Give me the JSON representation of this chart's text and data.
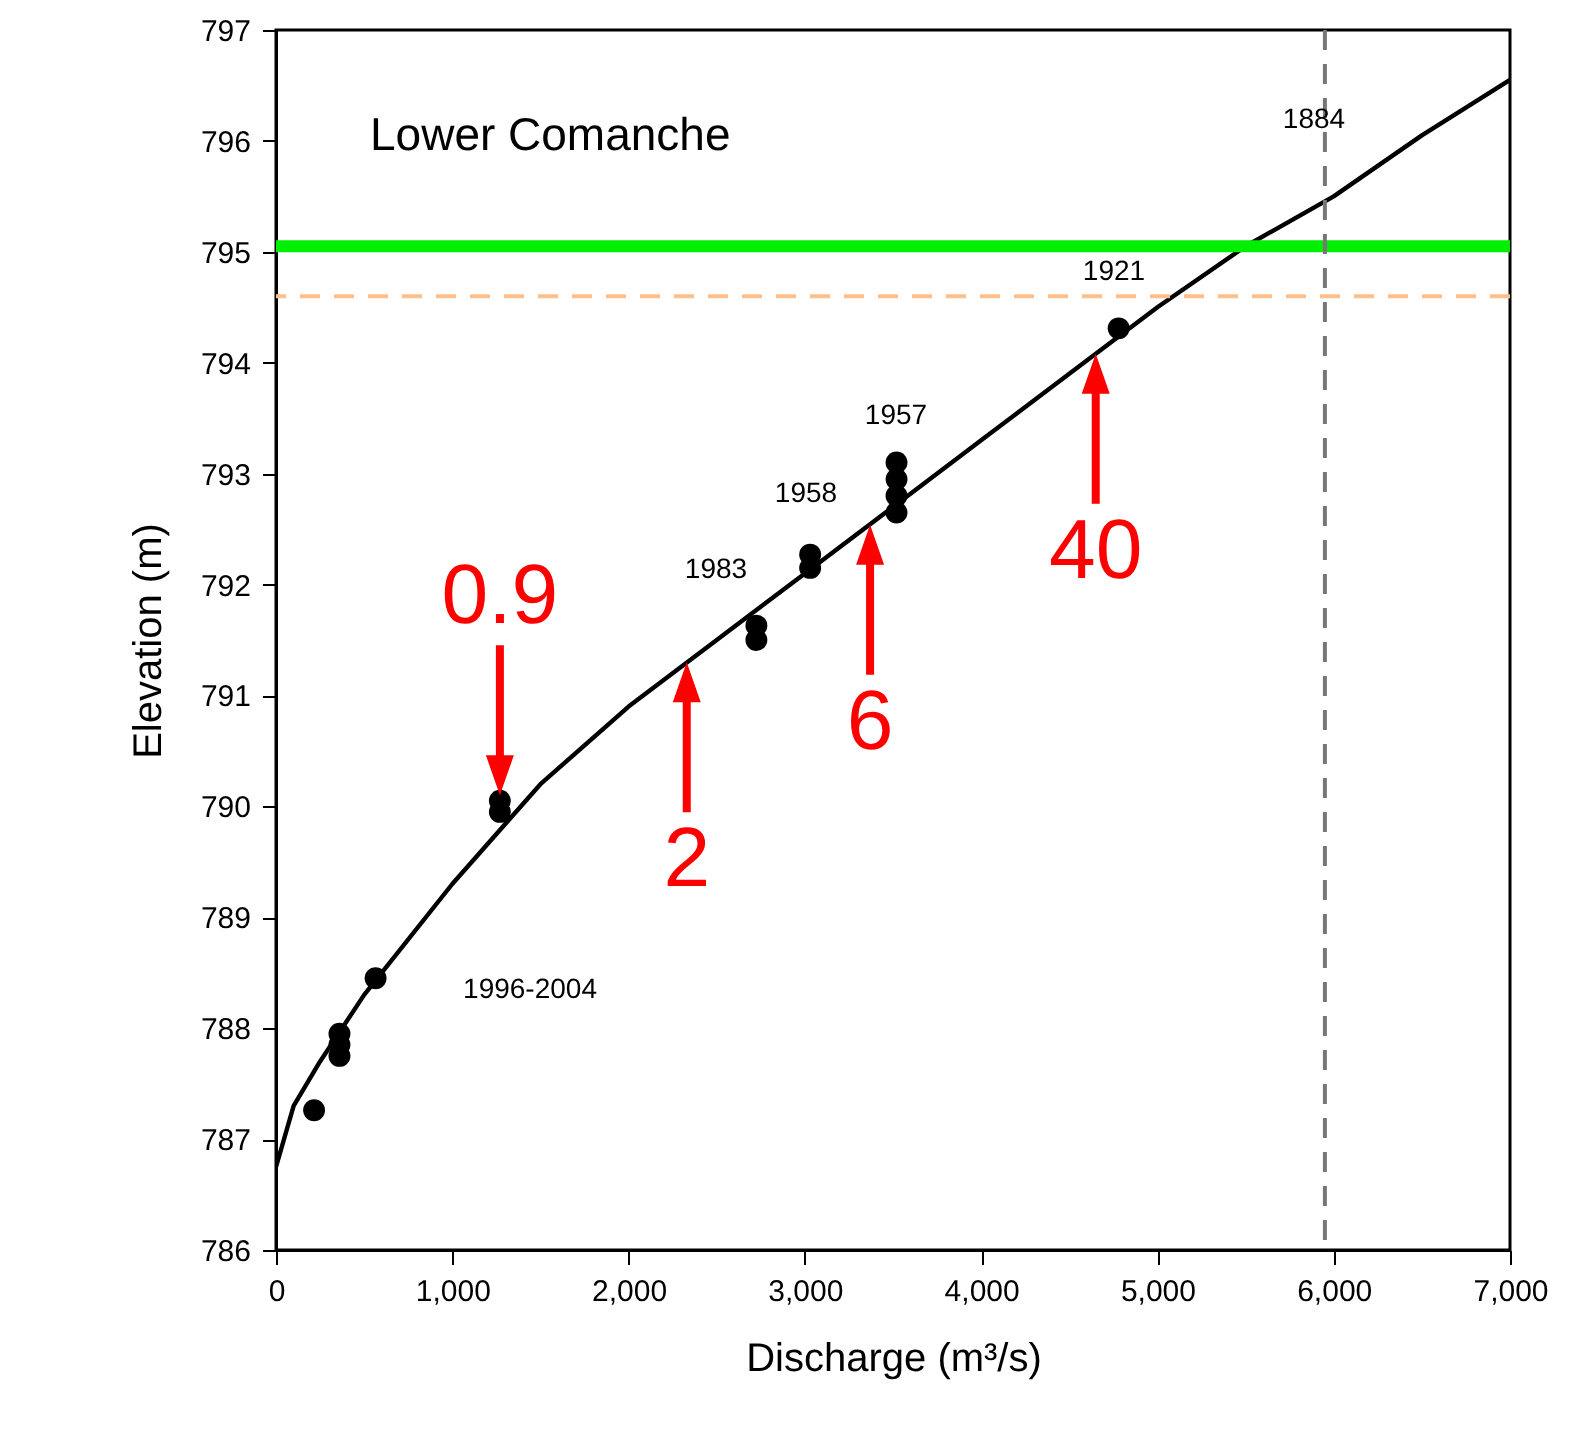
{
  "chart_data": {
    "type": "scatter",
    "xlabel": "Discharge (m³/s)",
    "ylabel": "Elevation (m)",
    "xlim": [
      0,
      7000
    ],
    "xticks": [
      0,
      {
        "value": 1000,
        "label": "1,000"
      },
      {
        "value": 2000,
        "label": "2,000"
      },
      {
        "value": 3000,
        "label": "3,000"
      },
      {
        "value": 4000,
        "label": "4,000"
      },
      {
        "value": 5000,
        "label": "5,000"
      },
      {
        "value": 6000,
        "label": "6,000"
      },
      {
        "value": 7000,
        "label": "7,000"
      }
    ],
    "ylim": [
      786,
      797
    ],
    "yticks": [
      786,
      787,
      788,
      789,
      790,
      791,
      792,
      793,
      794,
      795,
      796,
      797
    ],
    "grid": false,
    "series": [
      {
        "type": "line",
        "color": "#000000",
        "x": [
          0,
          100,
          250,
          500,
          1000,
          1500,
          2000,
          2500,
          3000,
          3500,
          4000,
          4500,
          5000,
          5500,
          6000,
          6500,
          7000
        ],
        "values": [
          786.75,
          787.3,
          787.7,
          788.3,
          789.3,
          790.2,
          790.9,
          791.5,
          792.1,
          792.7,
          793.3,
          793.9,
          794.5,
          795.05,
          795.5,
          796.05,
          796.55
        ]
      },
      {
        "color": "#000000",
        "marker": "circle",
        "x": [
          216,
          360,
          360,
          360,
          565,
          1270,
          1270,
          2725,
          2725,
          3030,
          3030,
          3520,
          3520,
          3520,
          3520,
          4780
        ],
        "values": [
          787.26,
          787.75,
          787.85,
          787.95,
          788.45,
          790.05,
          789.95,
          791.63,
          791.5,
          792.27,
          792.15,
          793.1,
          792.95,
          792.8,
          792.65,
          794.31
        ]
      }
    ],
    "ref_lines": [
      {
        "axis": "y",
        "value": 795.05,
        "color": "#00ee00",
        "line_style": "solid"
      },
      {
        "axis": "y",
        "value": 794.6,
        "color": "#ffbf8a",
        "line_style": "dashed"
      },
      {
        "axis": "x",
        "value": 5950,
        "color": "#777777",
        "line_style": "dashed"
      }
    ],
    "annotations": [
      "Lower Comanche",
      "1996-2004",
      "1983",
      "1958",
      "1957",
      "1921",
      "1884",
      {
        "text": "0.9",
        "x": 1270,
        "y": 790.1
      },
      {
        "text": "2",
        "x": 2330,
        "y": 791.3
      },
      {
        "text": "6",
        "x": 3370,
        "y": 792.54
      },
      {
        "text": "40",
        "x": 4650,
        "y": 794.08
      }
    ]
  }
}
